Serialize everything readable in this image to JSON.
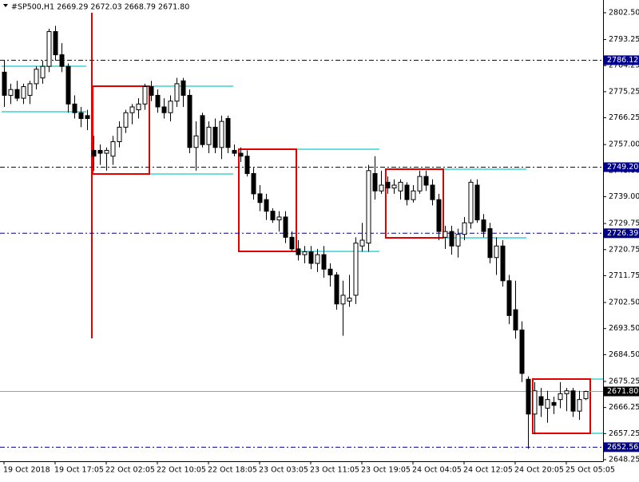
{
  "chart_data": {
    "type": "candlestick",
    "title": "#SP500,H1  2669.29 2672.03 2668.79 2671.80",
    "categories": [
      "19 Oct 2018",
      null,
      null,
      null,
      null,
      null,
      null,
      null,
      "19 Oct 17:05",
      null,
      null,
      null,
      null,
      null,
      null,
      null,
      "22 Oct 02:05",
      null,
      null,
      null,
      null,
      null,
      null,
      null,
      "22 Oct 10:05",
      null,
      null,
      null,
      null,
      null,
      null,
      null,
      "22 Oct 18:05",
      null,
      null,
      null,
      null,
      null,
      null,
      null,
      "23 Oct 03:05",
      null,
      null,
      null,
      null,
      null,
      null,
      null,
      "23 Oct 11:05",
      null,
      null,
      null,
      null,
      null,
      null,
      null,
      "23 Oct 19:05",
      null,
      null,
      null,
      null,
      null,
      null,
      null,
      "24 Oct 04:05",
      null,
      null,
      null,
      null,
      null,
      null,
      null,
      "24 Oct 12:05",
      null,
      null,
      null,
      null,
      null,
      null,
      null,
      "24 Oct 20:05",
      null,
      null,
      null,
      null,
      null,
      null,
      null,
      "25 Oct 05:05",
      null,
      null,
      null
    ],
    "open": [
      2782,
      2774,
      2776,
      2773,
      2774,
      2778,
      2780,
      2784,
      2796,
      2788,
      2784,
      2771,
      2768,
      2767,
      2755,
      2755,
      2754,
      2753,
      2758,
      2763,
      2768,
      2769,
      2771,
      2777,
      2774,
      2770,
      2768,
      2772,
      2779,
      2774,
      2756,
      2767,
      2757,
      2763,
      2756,
      2766,
      2755,
      2754,
      2753,
      2747,
      2740,
      2738,
      2734,
      2731,
      2732,
      2725,
      2721,
      2719,
      2720,
      2716,
      2719,
      2714,
      2712,
      2702,
      2703,
      2705,
      2722,
      2723,
      2747,
      2741,
      2744,
      2742,
      2741,
      2743,
      2738,
      2741,
      2746,
      2743,
      2738,
      2725,
      2727,
      2722,
      2726,
      2730,
      2743,
      2731,
      2728,
      2718,
      2722,
      2710,
      2700,
      2693,
      2676,
      2664,
      2670,
      2666,
      2668,
      2669,
      2671,
      2672,
      2665,
      2669.29
    ],
    "high": [
      2786,
      2778,
      2779,
      2778,
      2779,
      2784,
      2786,
      2797,
      2798,
      2792,
      2785,
      2774,
      2770,
      2769,
      2760,
      2757,
      2756,
      2760,
      2765,
      2769,
      2771,
      2773,
      2778,
      2779,
      2776,
      2773,
      2774,
      2780,
      2780,
      2776,
      2765,
      2768,
      2765,
      2766,
      2767,
      2767,
      2757,
      2756,
      2755,
      2749,
      2743,
      2740,
      2735,
      2734,
      2734,
      2727,
      2724,
      2722,
      2722,
      2721,
      2722,
      2716,
      2713,
      2710,
      2712,
      2725,
      2730,
      2750,
      2753,
      2748,
      2746,
      2745,
      2745,
      2744,
      2743,
      2748,
      2748,
      2745,
      2740,
      2729,
      2729,
      2728,
      2732,
      2745,
      2745,
      2733,
      2730,
      2725,
      2724,
      2712,
      2710,
      2696,
      2677,
      2675,
      2673,
      2672,
      2670,
      2675,
      2673,
      2673,
      2672,
      2672.03
    ],
    "low": [
      2770,
      2771,
      2772,
      2771,
      2771,
      2776,
      2778,
      2782,
      2786,
      2782,
      2768,
      2766,
      2763,
      2762,
      2748,
      2750,
      2748,
      2750,
      2756,
      2761,
      2764,
      2766,
      2769,
      2772,
      2768,
      2766,
      2765,
      2770,
      2770,
      2754,
      2748,
      2756,
      2754,
      2754,
      2752,
      2754,
      2753,
      2751,
      2746,
      2738,
      2734,
      2731,
      2730,
      2727,
      2723,
      2720,
      2717,
      2716,
      2714,
      2713,
      2711,
      2708,
      2700,
      2691,
      2701,
      2702,
      2720,
      2720,
      2738,
      2740,
      2740,
      2740,
      2738,
      2736,
      2737,
      2740,
      2741,
      2736,
      2724,
      2721,
      2719,
      2718,
      2724,
      2728,
      2730,
      2725,
      2716,
      2712,
      2708,
      2695,
      2690,
      2675,
      2652,
      2657,
      2663,
      2661,
      2664,
      2666,
      2665,
      2663,
      2662,
      2668.79
    ],
    "close": [
      2774,
      2776,
      2773,
      2777,
      2778,
      2783,
      2784,
      2796,
      2788,
      2784,
      2771,
      2768,
      2766,
      2766,
      2753,
      2754,
      2755,
      2758,
      2763,
      2768,
      2770,
      2771,
      2777,
      2774,
      2770,
      2768,
      2772,
      2778,
      2774,
      2756,
      2760,
      2757,
      2763,
      2756,
      2765,
      2756,
      2754,
      2753,
      2747,
      2740,
      2737,
      2734,
      2731,
      2732,
      2725,
      2721,
      2719,
      2720,
      2716,
      2719,
      2714,
      2712,
      2702,
      2705,
      2704,
      2723,
      2724,
      2748,
      2741,
      2743,
      2742,
      2743,
      2744,
      2738,
      2741,
      2746,
      2743,
      2738,
      2727,
      2727,
      2722,
      2726,
      2730,
      2744,
      2731,
      2727,
      2718,
      2722,
      2710,
      2698,
      2693,
      2678,
      2664,
      2672,
      2667,
      2669,
      2667,
      2671,
      2672,
      2665,
      2669,
      2671.8
    ],
    "up_color": "#ffffff",
    "down_color": "#000000",
    "ylim": [
      2647.7,
      2806.9
    ],
    "yticks": [
      {
        "value": 2802.5,
        "label": "2802.50"
      },
      {
        "value": 2793.25,
        "label": "2793.25"
      },
      {
        "value": 2784.25,
        "label": "2784.25"
      },
      {
        "value": 2775.25,
        "label": "2775.25"
      },
      {
        "value": 2766.25,
        "label": "2766.25"
      },
      {
        "value": 2757,
        "label": "2757.00"
      },
      {
        "value": 2748,
        "label": "2748.00"
      },
      {
        "value": 2739,
        "label": "2739.00"
      },
      {
        "value": 2729.75,
        "label": "2729.75"
      },
      {
        "value": 2720.75,
        "label": "2720.75"
      },
      {
        "value": 2711.75,
        "label": "2711.75"
      },
      {
        "value": 2702.5,
        "label": "2702.50"
      },
      {
        "value": 2693.5,
        "label": "2693.50"
      },
      {
        "value": 2684.5,
        "label": "2684.50"
      },
      {
        "value": 2675.25,
        "label": "2675.25"
      },
      {
        "value": 2666.25,
        "label": "2666.25"
      },
      {
        "value": 2657.25,
        "label": "2657.25"
      },
      {
        "value": 2648.25,
        "label": "2648.25"
      }
    ],
    "levels": [
      {
        "value": 2786.12,
        "label": "2786.12"
      },
      {
        "value": 2749.2,
        "label": "2749.20"
      },
      {
        "value": 2726.39,
        "label": "2726.39"
      },
      {
        "value": 2652.56,
        "label": "2652.56"
      }
    ],
    "level_color": "#00008b",
    "current_price": {
      "value": 2671.8,
      "label": "2671.80"
    }
  }
}
